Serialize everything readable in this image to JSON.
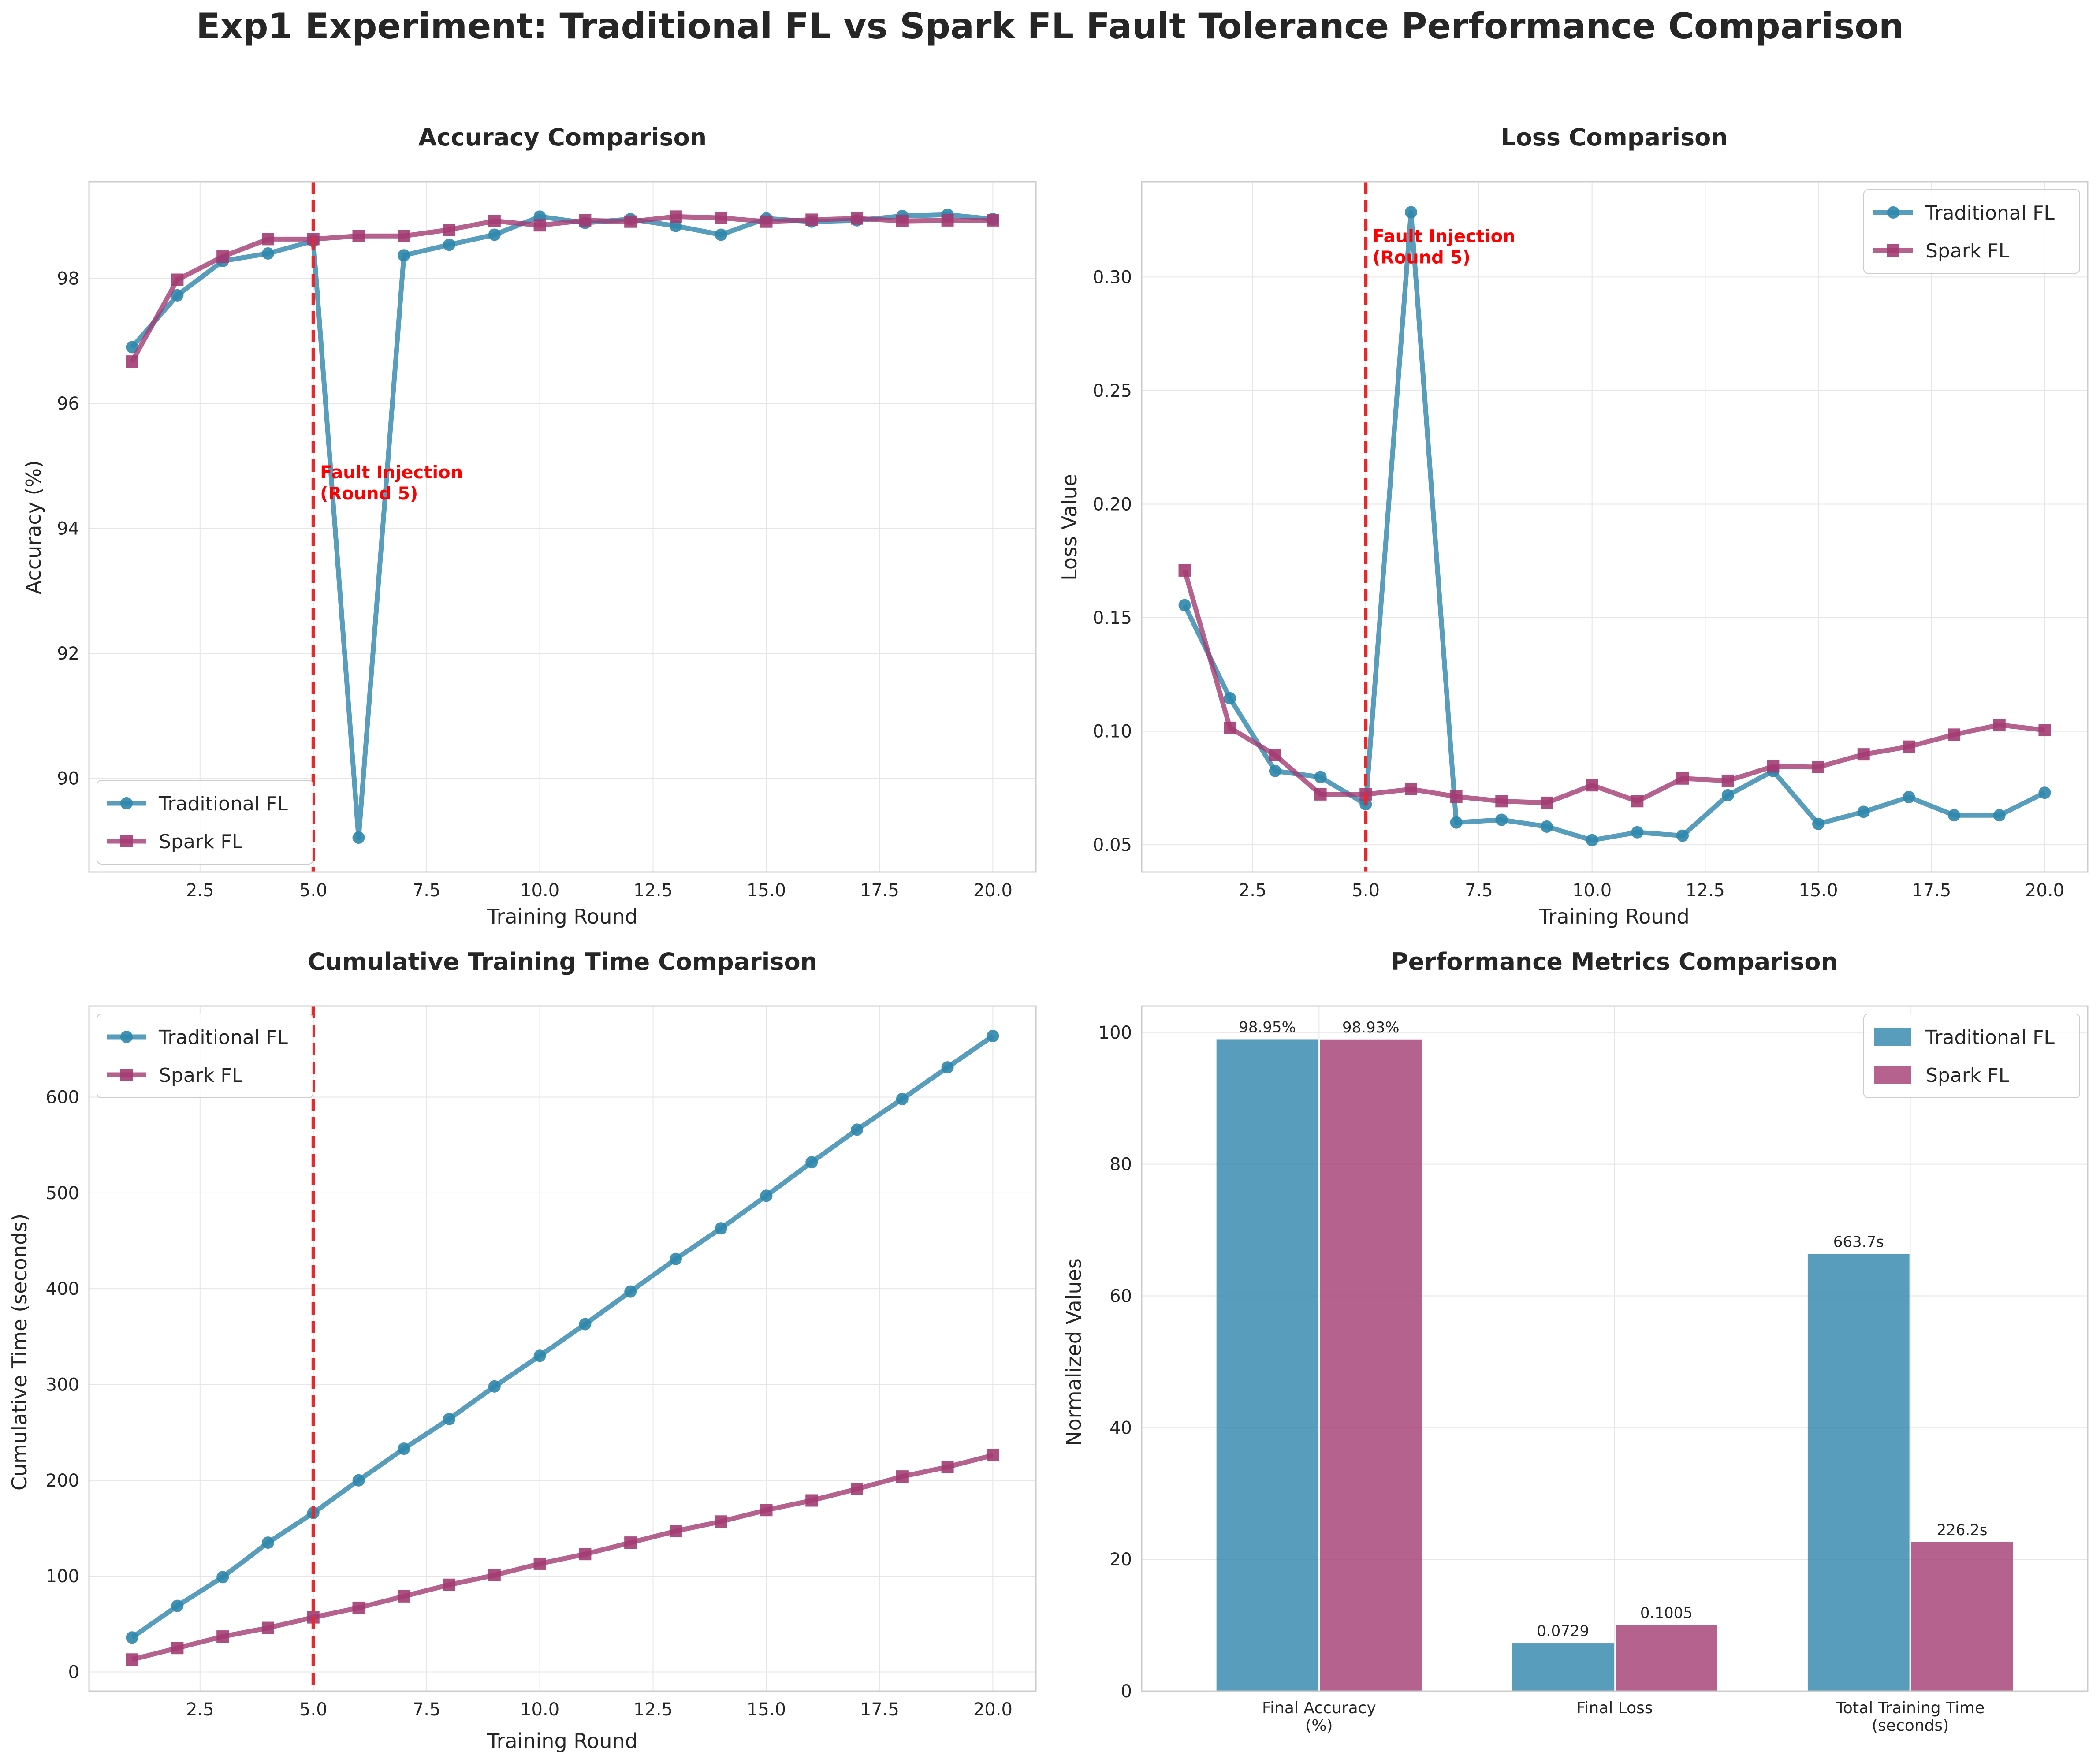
{
  "title": "Exp1 Experiment: Traditional FL vs Spark FL Fault Tolerance Performance Comparison",
  "colors": {
    "traditional": "#2E86AB",
    "spark": "#A23B72",
    "fault_line": "#e8282b",
    "annotation": "#ff0000"
  },
  "chart_data": [
    {
      "type": "line",
      "title": "Accuracy Comparison",
      "xlabel": "Training Round",
      "ylabel": "Accuracy (%)",
      "xlim": [
        0.05,
        20.95
      ],
      "ylim": [
        88.5,
        99.55
      ],
      "xticks": [
        2.5,
        5.0,
        7.5,
        10.0,
        12.5,
        15.0,
        17.5,
        20.0
      ],
      "xtick_labels": [
        "2.5",
        "5.0",
        "7.5",
        "10.0",
        "12.5",
        "15.0",
        "17.5",
        "20.0"
      ],
      "yticks": [
        90,
        92,
        94,
        96,
        98
      ],
      "ytick_labels": [
        "90",
        "92",
        "94",
        "96",
        "98"
      ],
      "x": [
        1,
        2,
        3,
        4,
        5,
        6,
        7,
        8,
        9,
        10,
        11,
        12,
        13,
        14,
        15,
        16,
        17,
        18,
        19,
        20
      ],
      "series": [
        {
          "name": "Traditional FL",
          "marker": "circle",
          "values": [
            96.9,
            97.73,
            98.28,
            98.4,
            98.6,
            89.05,
            98.37,
            98.54,
            98.7,
            98.99,
            98.89,
            98.95,
            98.84,
            98.7,
            98.96,
            98.91,
            98.93,
            99.0,
            99.02,
            98.95
          ]
        },
        {
          "name": "Spark FL",
          "marker": "square",
          "values": [
            96.67,
            97.98,
            98.35,
            98.63,
            98.63,
            98.68,
            98.68,
            98.78,
            98.92,
            98.85,
            98.93,
            98.91,
            98.99,
            98.97,
            98.91,
            98.94,
            98.96,
            98.92,
            98.93,
            98.93
          ]
        }
      ],
      "fault_x": 5,
      "annotation": {
        "lines": [
          "Fault Injection",
          "(Round 5)"
        ],
        "x": 5.15,
        "y": 94.9
      },
      "legend": "lower-left"
    },
    {
      "type": "line",
      "title": "Loss Comparison",
      "xlabel": "Training Round",
      "ylabel": "Loss Value",
      "xlim": [
        0.05,
        20.95
      ],
      "ylim": [
        0.038,
        0.342
      ],
      "xticks": [
        2.5,
        5.0,
        7.5,
        10.0,
        12.5,
        15.0,
        17.5,
        20.0
      ],
      "xtick_labels": [
        "2.5",
        "5.0",
        "7.5",
        "10.0",
        "12.5",
        "15.0",
        "17.5",
        "20.0"
      ],
      "yticks": [
        0.05,
        0.1,
        0.15,
        0.2,
        0.25,
        0.3
      ],
      "ytick_labels": [
        "0.05",
        "0.10",
        "0.15",
        "0.20",
        "0.25",
        "0.30"
      ],
      "x": [
        1,
        2,
        3,
        4,
        5,
        6,
        7,
        8,
        9,
        10,
        11,
        12,
        13,
        14,
        15,
        16,
        17,
        18,
        19,
        20
      ],
      "series": [
        {
          "name": "Traditional FL",
          "marker": "circle",
          "values": [
            0.1555,
            0.1145,
            0.0825,
            0.0798,
            0.0678,
            0.3285,
            0.0598,
            0.061,
            0.058,
            0.052,
            0.0555,
            0.054,
            0.0718,
            0.0825,
            0.0592,
            0.0645,
            0.071,
            0.063,
            0.063,
            0.0729
          ]
        },
        {
          "name": "Spark FL",
          "marker": "square",
          "values": [
            0.1708,
            0.1015,
            0.0895,
            0.0722,
            0.0722,
            0.0745,
            0.0712,
            0.0692,
            0.0685,
            0.0762,
            0.0692,
            0.0792,
            0.0782,
            0.0845,
            0.0842,
            0.0898,
            0.0932,
            0.0985,
            0.1028,
            0.1005
          ]
        }
      ],
      "fault_x": 5,
      "annotation": {
        "lines": [
          "Fault Injection",
          "(Round 5)"
        ],
        "x": 5.15,
        "y": 0.318
      },
      "legend": "upper-right"
    },
    {
      "type": "line",
      "title": "Cumulative Training Time Comparison",
      "xlabel": "Training Round",
      "ylabel": "Cumulative Time (seconds)",
      "xlim": [
        0.05,
        20.95
      ],
      "ylim": [
        -20,
        695
      ],
      "xticks": [
        2.5,
        5.0,
        7.5,
        10.0,
        12.5,
        15.0,
        17.5,
        20.0
      ],
      "xtick_labels": [
        "2.5",
        "5.0",
        "7.5",
        "10.0",
        "12.5",
        "15.0",
        "17.5",
        "20.0"
      ],
      "yticks": [
        0,
        100,
        200,
        300,
        400,
        500,
        600
      ],
      "ytick_labels": [
        "0",
        "100",
        "200",
        "300",
        "400",
        "500",
        "600"
      ],
      "x": [
        1,
        2,
        3,
        4,
        5,
        6,
        7,
        8,
        9,
        10,
        11,
        12,
        13,
        14,
        15,
        16,
        17,
        18,
        19,
        20
      ],
      "series": [
        {
          "name": "Traditional FL",
          "marker": "circle",
          "values": [
            36,
            69,
            99,
            135,
            166,
            200,
            233,
            264,
            298,
            330,
            363,
            397,
            431,
            463,
            497,
            532,
            566,
            598,
            631,
            663.7
          ]
        },
        {
          "name": "Spark FL",
          "marker": "square",
          "values": [
            13,
            25,
            37,
            46,
            57,
            67,
            79,
            91,
            101,
            113,
            123,
            135,
            147,
            157,
            169,
            179,
            191,
            204,
            214,
            226.2
          ]
        }
      ],
      "fault_x": 5,
      "legend": "upper-left"
    },
    {
      "type": "bar",
      "title": "Performance Metrics Comparison",
      "ylabel": "Normalized Values",
      "ylim": [
        0,
        104
      ],
      "yticks": [
        0,
        20,
        40,
        60,
        80,
        100
      ],
      "ytick_labels": [
        "0",
        "20",
        "40",
        "60",
        "80",
        "100"
      ],
      "categories": [
        "Final Accuracy\n(%)",
        "Final Loss",
        "Total Training Time\n(seconds)"
      ],
      "series": [
        {
          "name": "Traditional FL",
          "values": [
            98.95,
            7.29,
            66.37
          ],
          "labels": [
            "98.95%",
            "0.0729",
            "663.7s"
          ]
        },
        {
          "name": "Spark FL",
          "values": [
            98.93,
            10.05,
            22.62
          ],
          "labels": [
            "98.93%",
            "0.1005",
            "226.2s"
          ]
        }
      ],
      "legend": "upper-right"
    }
  ]
}
